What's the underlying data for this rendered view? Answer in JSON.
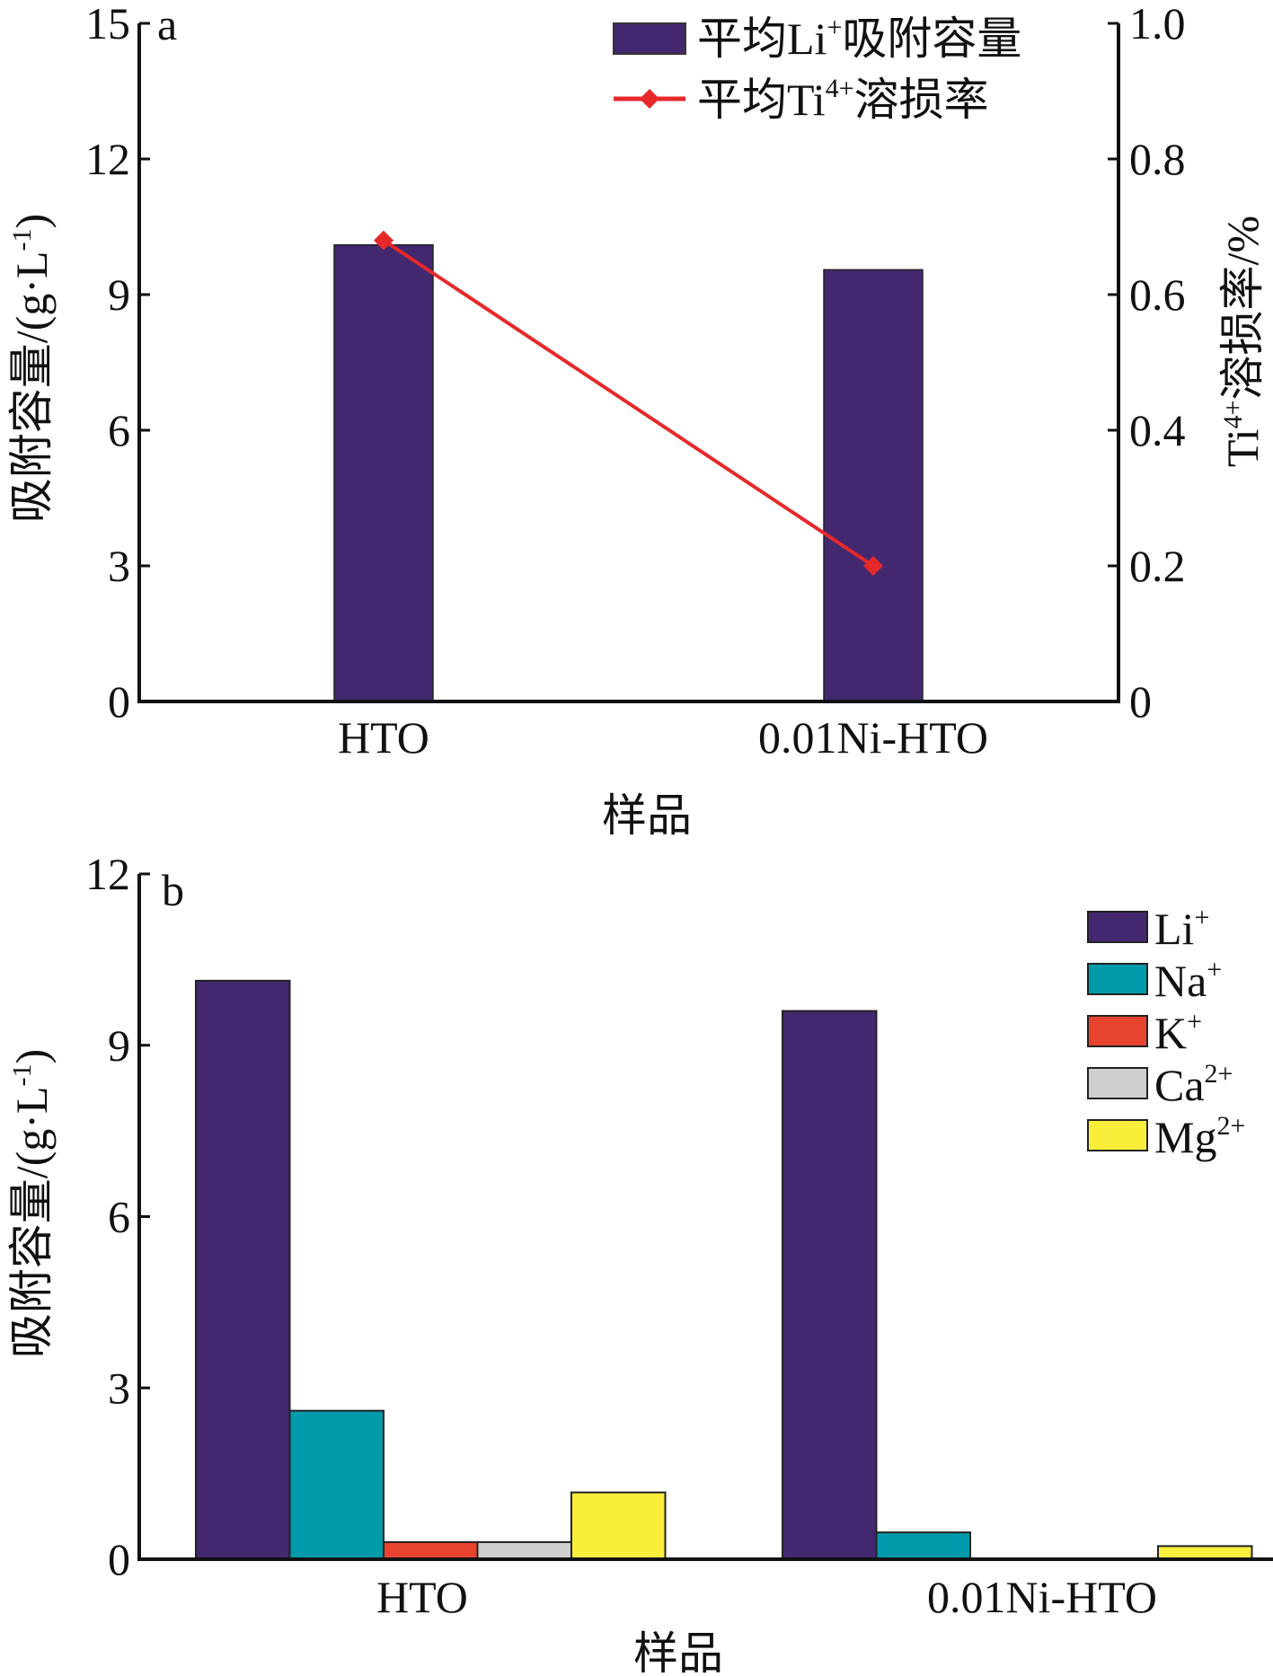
{
  "chart_data": [
    {
      "type": "bar",
      "panel_label": "a",
      "categories": [
        "HTO",
        "0.01Ni-HTO"
      ],
      "xlabel": "样品",
      "ylabel": {
        "main": "吸附容量/(g·L",
        "sup": "-1",
        "end": ")"
      },
      "ylim": [
        0,
        15
      ],
      "yticks": [
        "0",
        "3",
        "6",
        "9",
        "12",
        "15"
      ],
      "y2label": {
        "main": "Ti",
        "sup": "4+",
        "end": "溶损率/%"
      },
      "y2lim": [
        0,
        1.0
      ],
      "y2ticks": [
        "0",
        "0.2",
        "0.4",
        "0.6",
        "0.8",
        "1.0"
      ],
      "series": [
        {
          "name": {
            "main": "平均Li",
            "sup": "+",
            "end": "吸附容量"
          },
          "kind": "bar",
          "axis": "left",
          "color": "#432870",
          "values": [
            10.1,
            9.55
          ]
        },
        {
          "name": {
            "main": "平均Ti",
            "sup": "4+",
            "end": "溶损率"
          },
          "kind": "line",
          "axis": "right",
          "color": "#e5292b",
          "values": [
            0.68,
            0.2
          ]
        }
      ],
      "legend": "top-right"
    },
    {
      "type": "bar",
      "panel_label": "b",
      "categories": [
        "HTO",
        "0.01Ni-HTO"
      ],
      "xlabel": "样品",
      "ylabel": {
        "main": "吸附容量/(g·L",
        "sup": "-1",
        "end": ")"
      },
      "ylim": [
        0,
        12
      ],
      "yticks": [
        "0",
        "3",
        "6",
        "9",
        "12"
      ],
      "series": [
        {
          "name": {
            "main": "Li",
            "sup": "+"
          },
          "color": "#432870",
          "values": [
            10.13,
            9.6
          ]
        },
        {
          "name": {
            "main": "Na",
            "sup": "+"
          },
          "color": "#009aaa",
          "values": [
            2.6,
            0.47
          ]
        },
        {
          "name": {
            "main": "K",
            "sup": "+"
          },
          "color": "#e8432f",
          "values": [
            0.3,
            0
          ]
        },
        {
          "name": {
            "main": "Ca",
            "sup": "2+"
          },
          "color": "#cfcfcf",
          "values": [
            0.3,
            0
          ]
        },
        {
          "name": {
            "main": "Mg",
            "sup": "2+"
          },
          "color": "#f9ef3b",
          "values": [
            1.17,
            0.23
          ]
        }
      ],
      "legend": "top-right"
    }
  ]
}
